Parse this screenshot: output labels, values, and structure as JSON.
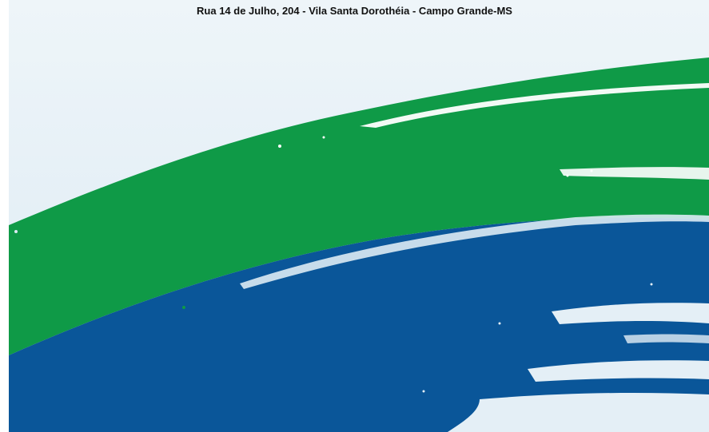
{
  "header": {
    "address": "Rua 14 de Julho, 204 - Vila Santa Dorothéia - Campo Grande-MS"
  },
  "colors": {
    "green": "#0f9a47",
    "blue": "#0a5699",
    "background": "#e6f0f7"
  },
  "graphic": {
    "icon": "brush-stroke-swoosh"
  }
}
